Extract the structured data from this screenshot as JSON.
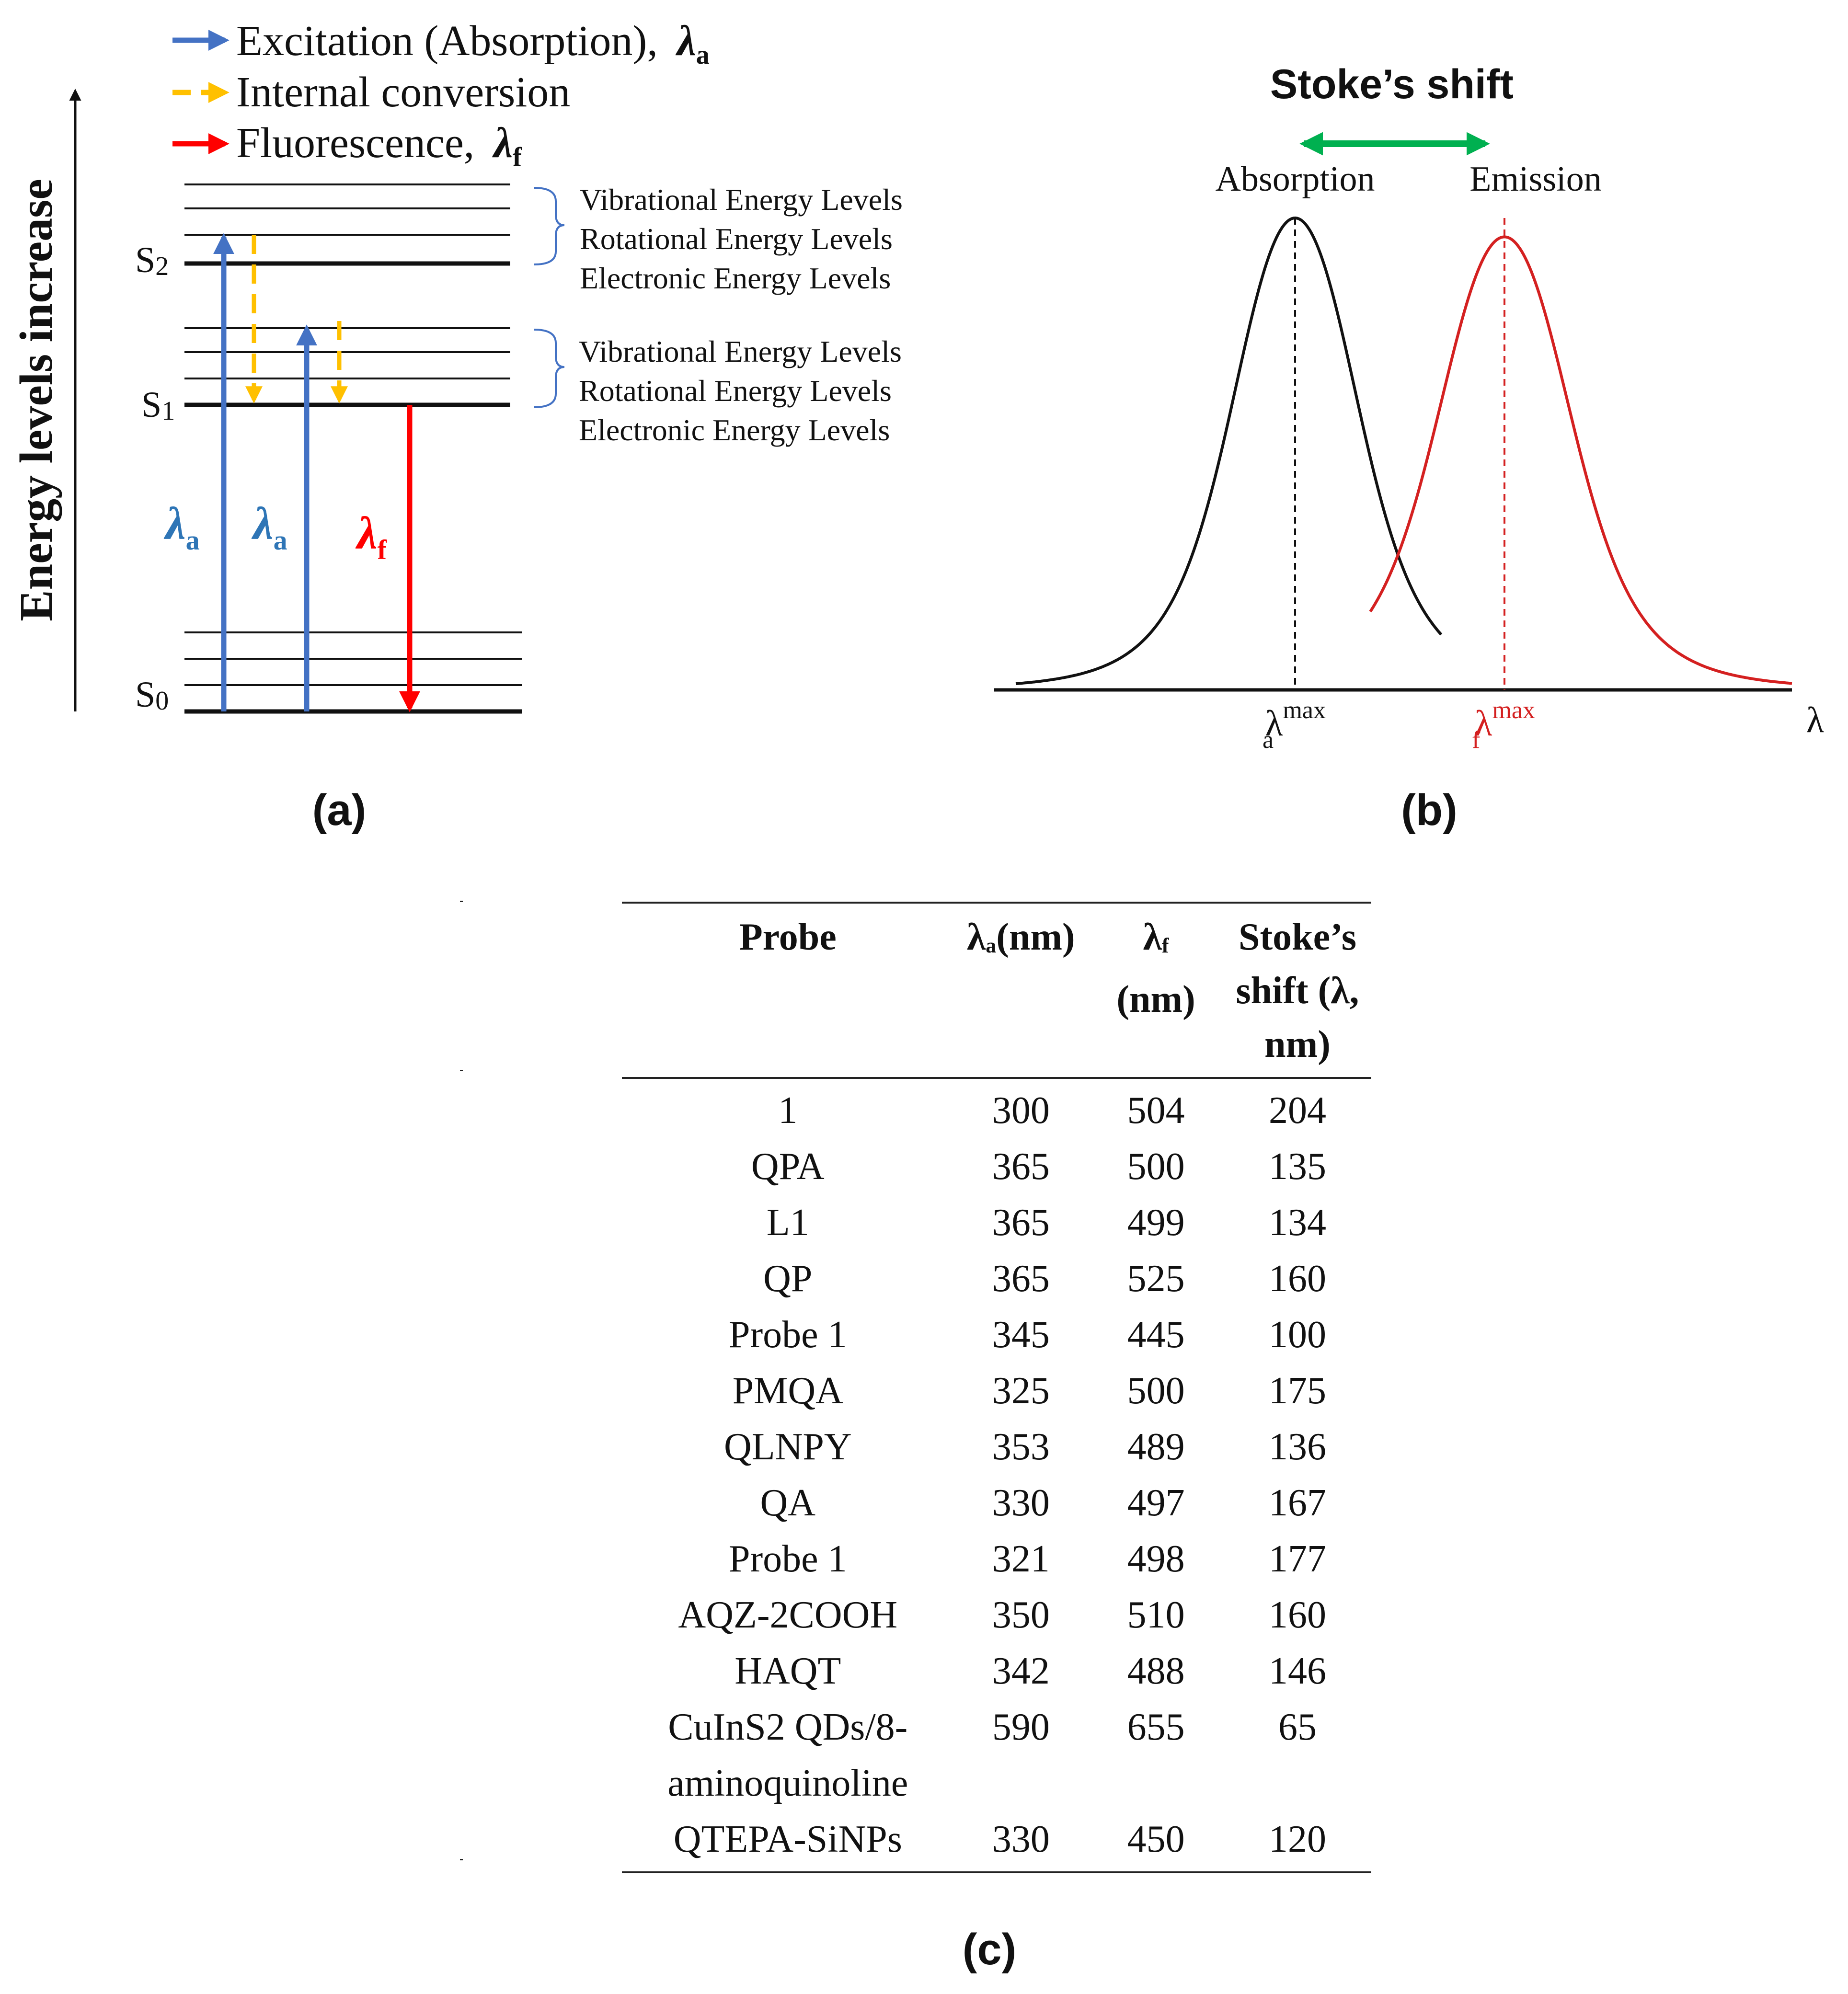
{
  "panel_a": {
    "legend": [
      {
        "label": "Excitation (Absorption),",
        "symbol": "λ",
        "subscript": "a",
        "color": "#4472C4",
        "style": "solid"
      },
      {
        "label": "Internal conversion",
        "color": "#FFC000",
        "style": "dashed"
      },
      {
        "label": "Fluorescence,",
        "symbol": "λ",
        "subscript": "f",
        "color": "#FF0000",
        "style": "solid"
      }
    ],
    "y_axis_label": "Energy levels increase",
    "states": [
      {
        "name": "S",
        "sub": "2"
      },
      {
        "name": "S",
        "sub": "1"
      },
      {
        "name": "S",
        "sub": "0"
      }
    ],
    "arrow_labels": [
      {
        "symbol": "λ",
        "sub": "a",
        "color": "#2E75B6"
      },
      {
        "symbol": "λ",
        "sub": "a",
        "color": "#2E75B6"
      },
      {
        "symbol": "λ",
        "sub": "f",
        "color": "#FF0000"
      }
    ],
    "level_labels_upper": [
      "Vibrational Energy Levels",
      "Rotational Energy Levels",
      "Electronic Energy Levels"
    ],
    "level_labels_lower": [
      "Vibrational Energy Levels",
      "Rotational Energy Levels",
      "Electronic Energy Levels"
    ],
    "caption": "(a)"
  },
  "panel_b": {
    "title": "Stoke’s shift",
    "peak_labels": [
      "Absorption",
      "Emission"
    ],
    "x_axis_symbol": "λ",
    "marker_absorption": {
      "symbol": "λ",
      "sub": "a",
      "sup": "max"
    },
    "marker_emission": {
      "symbol": "λ",
      "sub": "f",
      "sup": "max"
    },
    "caption": "(b)",
    "colors": {
      "absorption": "#111111",
      "emission": "#D42020",
      "arrow": "#00B050"
    }
  },
  "chart_data": {
    "type": "line",
    "title": "Stoke’s shift",
    "xlabel": "λ",
    "ylabel": "",
    "series": [
      {
        "name": "Absorption",
        "color": "#111111",
        "peak_x": 0.4,
        "peak_y": 1.0
      },
      {
        "name": "Emission",
        "color": "#D42020",
        "peak_x": 0.65,
        "peak_y": 0.96
      }
    ],
    "annotations": [
      "λa max",
      "λf max"
    ],
    "grid": false
  },
  "panel_c": {
    "headers": [
      {
        "text": "Probe"
      },
      {
        "symbol": "λ",
        "sub": "a",
        "text": "(nm)"
      },
      {
        "symbol": "λ",
        "sub": "f",
        "text": "(nm)"
      },
      {
        "text": "Stoke’s shift (λ, nm)"
      }
    ],
    "rows": [
      {
        "probe": "1",
        "la": "300",
        "lf": "504",
        "shift": "204"
      },
      {
        "probe": "QPA",
        "la": "365",
        "lf": "500",
        "shift": "135"
      },
      {
        "probe": "L1",
        "la": "365",
        "lf": "499",
        "shift": "134"
      },
      {
        "probe": "QP",
        "la": "365",
        "lf": "525",
        "shift": "160"
      },
      {
        "probe": "Probe 1",
        "la": "345",
        "lf": "445",
        "shift": "100"
      },
      {
        "probe": "PMQA",
        "la": "325",
        "lf": "500",
        "shift": "175"
      },
      {
        "probe": "QLNPY",
        "la": "353",
        "lf": "489",
        "shift": "136"
      },
      {
        "probe": "QA",
        "la": "330",
        "lf": "497",
        "shift": "167"
      },
      {
        "probe": "Probe 1",
        "la": "321",
        "lf": "498",
        "shift": "177"
      },
      {
        "probe": "AQZ-2COOH",
        "la": "350",
        "lf": "510",
        "shift": "160"
      },
      {
        "probe": "HAQT",
        "la": "342",
        "lf": "488",
        "shift": "146"
      },
      {
        "probe": "CuInS2 QDs/8-aminoquinoline",
        "la": "590",
        "lf": "655",
        "shift": "65"
      },
      {
        "probe": "QTEPA-SiNPs",
        "la": "330",
        "lf": "450",
        "shift": "120"
      }
    ],
    "caption": "(c)"
  }
}
